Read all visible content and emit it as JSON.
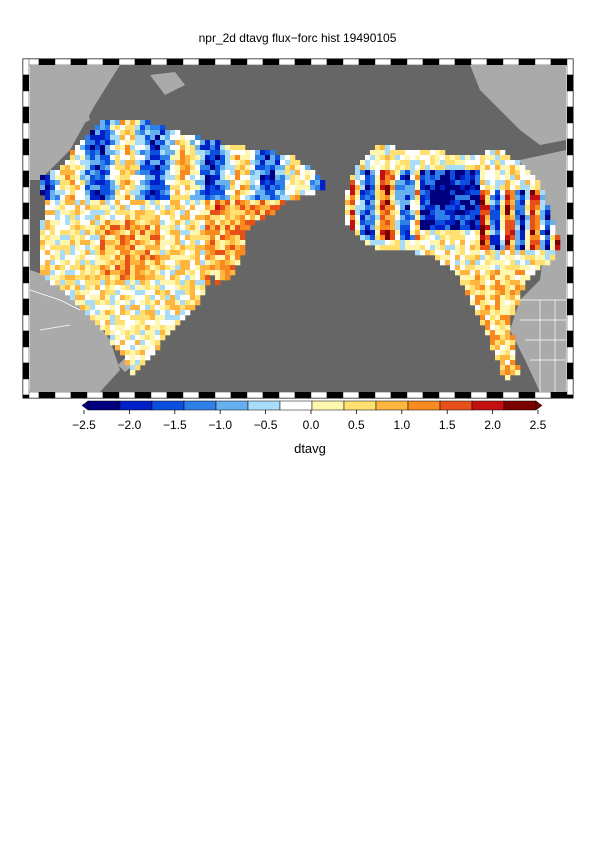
{
  "title": "npr_2d dtavg flux−forc hist 19490105",
  "colorbar": {
    "label": "dtavg",
    "ticks": [
      "−2.5",
      "−2.0",
      "−1.5",
      "−1.0",
      "−0.5",
      "0.0",
      "0.5",
      "1.0",
      "1.5",
      "2.0",
      "2.5"
    ],
    "min": -2.5,
    "max": 2.5,
    "colors": [
      "#00007f",
      "#0020c8",
      "#0a4fe0",
      "#2f7fe8",
      "#66b0f0",
      "#a8dcf8",
      "#ffffff",
      "#fff6b0",
      "#ffe070",
      "#ffb640",
      "#f88a20",
      "#e8501a",
      "#c41010",
      "#7a0000"
    ]
  },
  "map": {
    "ocean_color": "#666666",
    "land_color": "#aaaaaa",
    "data_regions": [
      "asia",
      "alaska-northwest-canada"
    ]
  }
}
